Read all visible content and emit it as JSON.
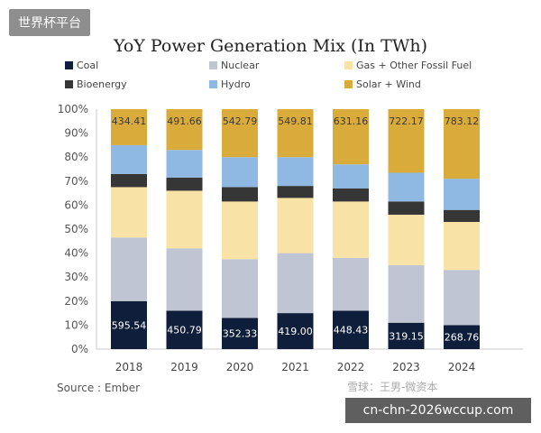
{
  "header_tag": "世界杯平台",
  "footer_tag": "cn-chn-2026wccup.com",
  "watermark": "雪球：王男-微资本",
  "source": "Source : Ember",
  "colors": {
    "Coal": "#0f1f3b",
    "Nuclear": "#bfc5d3",
    "Gas + Other Fossil Fuel": "#f8e2a6",
    "Bioenergy": "#363636",
    "Hydro": "#8fb8e2",
    "Solar + Wind": "#d9ab3a"
  },
  "chart_data": {
    "type": "bar",
    "stacked": true,
    "percent": true,
    "title": "YoY Power Generation Mix (In TWh)",
    "categories": [
      "2018",
      "2019",
      "2020",
      "2021",
      "2022",
      "2023",
      "2024"
    ],
    "ylim": [
      0,
      100
    ],
    "yticks": [
      "0%",
      "10%",
      "20%",
      "30%",
      "40%",
      "50%",
      "60%",
      "70%",
      "80%",
      "90%",
      "100%"
    ],
    "grid": false,
    "legend_position": "top",
    "series": [
      {
        "name": "Coal",
        "values": [
          20,
          16,
          13,
          15,
          16,
          11,
          10
        ],
        "labels": [
          "595.54",
          "450.79",
          "352.33",
          "419.00",
          "448.43",
          "319.15",
          "268.76"
        ]
      },
      {
        "name": "Nuclear",
        "values": [
          26.5,
          26,
          24.5,
          25,
          22,
          24,
          23
        ]
      },
      {
        "name": "Gas + Other Fossil Fuel",
        "values": [
          21,
          24,
          24,
          23,
          23.5,
          21,
          20
        ]
      },
      {
        "name": "Bioenergy",
        "values": [
          5.5,
          5.5,
          6,
          5,
          5.5,
          5.5,
          5
        ]
      },
      {
        "name": "Hydro",
        "values": [
          12,
          11.5,
          12.5,
          12,
          10,
          12,
          13
        ]
      },
      {
        "name": "Solar + Wind",
        "values": [
          15,
          17,
          20,
          20,
          23,
          26.5,
          29
        ],
        "labels": [
          "434.41",
          "491.66",
          "542.79",
          "549.81",
          "631.16",
          "722.17",
          "783.12"
        ]
      }
    ]
  }
}
